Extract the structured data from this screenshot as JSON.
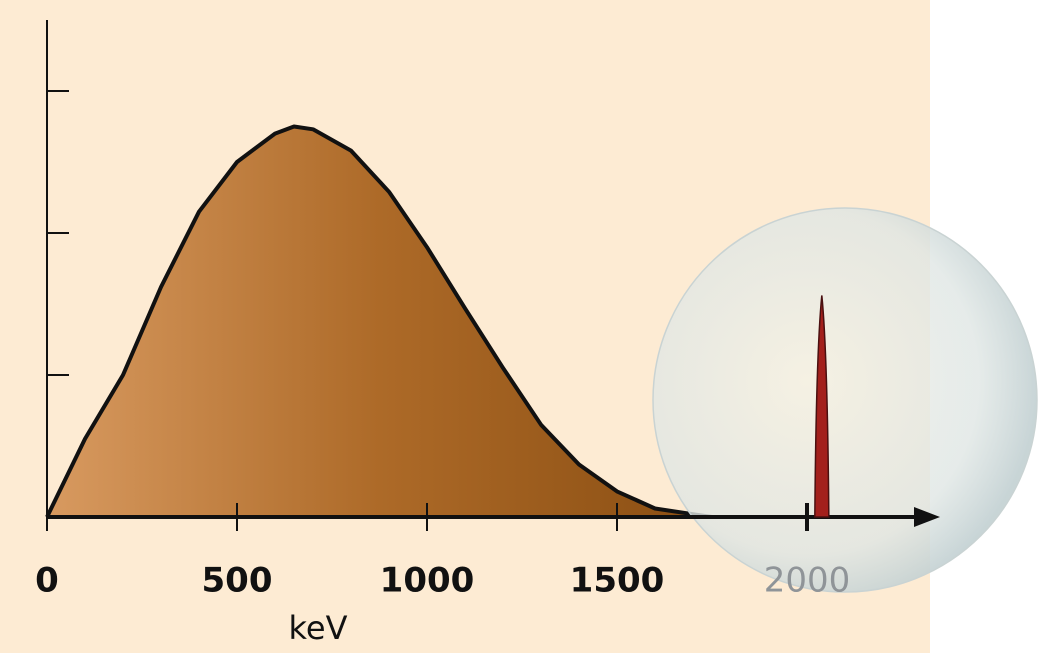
{
  "chart_data": {
    "type": "area",
    "x_label": "keV",
    "x": [
      0,
      100,
      200,
      300,
      400,
      500,
      600,
      650,
      700,
      800,
      900,
      1000,
      1100,
      1200,
      1300,
      1400,
      1500,
      1600,
      1700,
      1750
    ],
    "values": [
      0,
      0.55,
      1.0,
      1.62,
      2.15,
      2.5,
      2.7,
      2.75,
      2.73,
      2.58,
      2.29,
      1.9,
      1.47,
      1.05,
      0.65,
      0.37,
      0.18,
      0.06,
      0.02,
      0
    ],
    "color": "#b8742f",
    "peak": {
      "x": 2039,
      "value": 1.56,
      "color": "#a3201c"
    },
    "xlim": [
      0,
      2350
    ],
    "xticks": [
      0,
      500,
      1000,
      1500,
      2000
    ],
    "ylim": [
      0,
      3.5
    ],
    "yticks": [
      1,
      2,
      3
    ],
    "ytick_labels": false
  }
}
